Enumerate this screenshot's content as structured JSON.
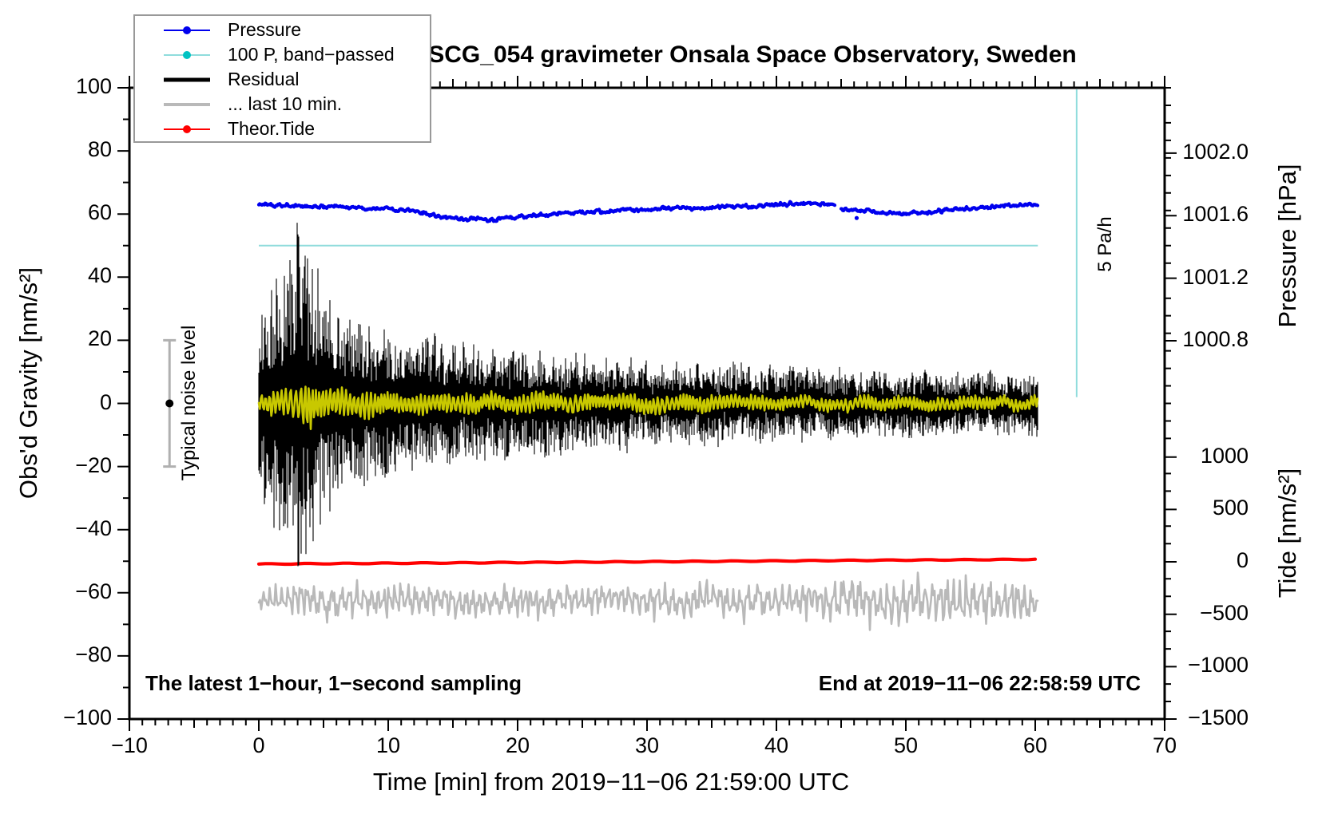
{
  "title": "SCG_054 gravimeter Onsala Space Observatory, Sweden",
  "legend": {
    "items": [
      {
        "label": "Pressure",
        "line_color": "#0000ee",
        "line_width": 2,
        "dot": true,
        "dot_color": "#0000ee"
      },
      {
        "label": "100 P, band−passed",
        "line_color": "#8fdcdc",
        "line_width": 2,
        "dot": true,
        "dot_color": "#00c3c3"
      },
      {
        "label": "Residual",
        "line_color": "#000000",
        "line_width": 5,
        "dot": false,
        "dot_color": "#000000"
      },
      {
        "label": "... last 10 min.",
        "line_color": "#b9b9b9",
        "line_width": 4,
        "dot": false,
        "dot_color": "#b9b9b9"
      },
      {
        "label": "Theor.Tide",
        "line_color": "#ff0000",
        "line_width": 2,
        "dot": true,
        "dot_color": "#ff0000"
      }
    ]
  },
  "annotations": {
    "noise_label": "Typical noise level",
    "rate_label": "5 Pa/h",
    "footer_left": "The latest 1−hour, 1−second sampling",
    "footer_right": "End at 2019−11−06 22:58:59 UTC"
  },
  "chart_data": {
    "type": "line",
    "grid": false,
    "x_axis": {
      "label": "Time [min] from 2019−11−06 21:59:00 UTC",
      "min": -10,
      "max": 70,
      "major_ticks": [
        -10,
        0,
        10,
        20,
        30,
        40,
        50,
        60,
        70
      ],
      "minor_step": 1,
      "medium_step": 5
    },
    "y_axis_left": {
      "label": "Obs'd Gravity [nm/s²]",
      "min": -100,
      "max": 100,
      "major_step": 20,
      "minor_step": 10,
      "major_ticks": [
        100,
        80,
        60,
        40,
        20,
        0,
        -20,
        -40,
        -60,
        -80,
        -100
      ]
    },
    "y_axis_pressure": {
      "label": "Pressure [hPa]",
      "tick_values": [
        1002.0,
        1001.6,
        1001.2,
        1000.8
      ],
      "tick_labels": [
        "1002.0",
        "1001.6",
        "1001.2",
        "1000.8"
      ]
    },
    "y_axis_tide": {
      "label": "Tide [nm/s²]",
      "tick_values": [
        1000,
        500,
        0,
        -500,
        -1000,
        -1500
      ]
    },
    "data_span_min": [
      0,
      60.2
    ],
    "series": [
      {
        "name": "Pressure",
        "axis": "pressure",
        "color": "#0000ee",
        "style": "beaded_line",
        "width": 4.2,
        "jitter_hpa": 0.014,
        "gap_min": [
          44.55,
          45.0
        ],
        "outlier": {
          "t_min": 46.2,
          "hpa": 1001.585
        },
        "anchors_min_hpa": [
          [
            0,
            1001.67
          ],
          [
            2,
            1001.665
          ],
          [
            4,
            1001.66
          ],
          [
            6,
            1001.66
          ],
          [
            8,
            1001.65
          ],
          [
            10,
            1001.645
          ],
          [
            11,
            1001.63
          ],
          [
            12,
            1001.635
          ],
          [
            13,
            1001.61
          ],
          [
            14,
            1001.595
          ],
          [
            15,
            1001.58
          ],
          [
            16,
            1001.575
          ],
          [
            17,
            1001.585
          ],
          [
            18,
            1001.57
          ],
          [
            19,
            1001.585
          ],
          [
            20,
            1001.59
          ],
          [
            21,
            1001.6
          ],
          [
            22,
            1001.605
          ],
          [
            23,
            1001.61
          ],
          [
            24,
            1001.62
          ],
          [
            25,
            1001.615
          ],
          [
            26,
            1001.625
          ],
          [
            27,
            1001.63
          ],
          [
            28,
            1001.635
          ],
          [
            29,
            1001.64
          ],
          [
            30,
            1001.64
          ],
          [
            31,
            1001.645
          ],
          [
            32,
            1001.65
          ],
          [
            33,
            1001.65
          ],
          [
            34,
            1001.645
          ],
          [
            35,
            1001.65
          ],
          [
            36,
            1001.655
          ],
          [
            37,
            1001.66
          ],
          [
            38,
            1001.66
          ],
          [
            39,
            1001.665
          ],
          [
            40,
            1001.67
          ],
          [
            41,
            1001.675
          ],
          [
            42,
            1001.68
          ],
          [
            43,
            1001.675
          ],
          [
            44,
            1001.67
          ],
          [
            44.55,
            1001.665
          ],
          [
            45,
            1001.64
          ],
          [
            46,
            1001.635
          ],
          [
            47,
            1001.63
          ],
          [
            48,
            1001.62
          ],
          [
            49,
            1001.615
          ],
          [
            50,
            1001.62
          ],
          [
            51,
            1001.62
          ],
          [
            52,
            1001.625
          ],
          [
            53,
            1001.63
          ],
          [
            54,
            1001.64
          ],
          [
            55,
            1001.645
          ],
          [
            56,
            1001.65
          ],
          [
            57,
            1001.66
          ],
          [
            58,
            1001.665
          ],
          [
            59,
            1001.67
          ],
          [
            60.2,
            1001.675
          ]
        ]
      },
      {
        "name": "100 P, band−passed",
        "axis": "gravity",
        "color": "#c8c800",
        "style": "oscillation",
        "width": 2.6,
        "center": 0,
        "period_min": 0.3,
        "amplitude_anchors": [
          [
            0,
            3
          ],
          [
            1,
            4
          ],
          [
            2,
            5
          ],
          [
            3,
            6.5
          ],
          [
            3.5,
            7.5
          ],
          [
            4,
            7
          ],
          [
            4.5,
            6.5
          ],
          [
            5,
            5.5
          ],
          [
            6,
            5
          ],
          [
            7,
            4.8
          ],
          [
            8,
            4.5
          ],
          [
            10,
            4
          ],
          [
            12,
            3.8
          ],
          [
            15,
            3.5
          ],
          [
            20,
            3.2
          ],
          [
            25,
            3
          ],
          [
            30,
            2.8
          ],
          [
            35,
            2.5
          ],
          [
            40,
            2.3
          ],
          [
            45,
            2.2
          ],
          [
            50,
            2.2
          ],
          [
            55,
            2.1
          ],
          [
            60.2,
            2.1
          ]
        ]
      },
      {
        "name": "Residual",
        "axis": "gravity",
        "color": "#000000",
        "style": "noise_columns",
        "width": 1.1,
        "center": 0,
        "envelope_anchors": [
          [
            0,
            28
          ],
          [
            0.5,
            34
          ],
          [
            1,
            36
          ],
          [
            1.5,
            38
          ],
          [
            2,
            42
          ],
          [
            2.5,
            39
          ],
          [
            3,
            52
          ],
          [
            3.3,
            48
          ],
          [
            3.6,
            45
          ],
          [
            4,
            44
          ],
          [
            4.5,
            39
          ],
          [
            5,
            34
          ],
          [
            5.5,
            32
          ],
          [
            6,
            30
          ],
          [
            7,
            27
          ],
          [
            8,
            25
          ],
          [
            9,
            23
          ],
          [
            10,
            22
          ],
          [
            11,
            21
          ],
          [
            12,
            20
          ],
          [
            13,
            19.5
          ],
          [
            14,
            19
          ],
          [
            15,
            18
          ],
          [
            16,
            17.5
          ],
          [
            17,
            17
          ],
          [
            18,
            16.5
          ],
          [
            19,
            16
          ],
          [
            20,
            15.5
          ],
          [
            21,
            16
          ],
          [
            22,
            17.5
          ],
          [
            23,
            15
          ],
          [
            24,
            14.5
          ],
          [
            25,
            14
          ],
          [
            26,
            14
          ],
          [
            27,
            13.5
          ],
          [
            28,
            13.5
          ],
          [
            29,
            13
          ],
          [
            30,
            13
          ],
          [
            32,
            12.5
          ],
          [
            34,
            12
          ],
          [
            36,
            11.5
          ],
          [
            38,
            11.5
          ],
          [
            40,
            11
          ],
          [
            42,
            10.5
          ],
          [
            44,
            10.5
          ],
          [
            46,
            10
          ],
          [
            48,
            10
          ],
          [
            50,
            9.5
          ],
          [
            52,
            9.5
          ],
          [
            54,
            9
          ],
          [
            56,
            9
          ],
          [
            58,
            9
          ],
          [
            60.2,
            9
          ]
        ]
      },
      {
        "name": "... last 10 min.",
        "axis": "gravity",
        "color": "#b9b9b9",
        "style": "wiggle",
        "width": 2.6,
        "center": -62.5,
        "period_min": 0.55,
        "amplitude_anchors": [
          [
            0,
            5
          ],
          [
            5,
            6
          ],
          [
            10,
            6
          ],
          [
            15,
            5.5
          ],
          [
            20,
            6
          ],
          [
            25,
            5.5
          ],
          [
            30,
            6
          ],
          [
            35,
            6
          ],
          [
            40,
            6.5
          ],
          [
            45,
            7
          ],
          [
            48,
            8
          ],
          [
            50,
            9
          ],
          [
            52,
            8
          ],
          [
            54,
            9
          ],
          [
            56,
            9
          ],
          [
            58,
            7
          ],
          [
            60.2,
            7
          ]
        ]
      },
      {
        "name": "Theor.Tide",
        "axis": "gravity",
        "color": "#ff0000",
        "style": "line",
        "width": 4.2,
        "anchors_min_gravity": [
          [
            0,
            -50.9
          ],
          [
            10,
            -50.65
          ],
          [
            20,
            -50.4
          ],
          [
            30,
            -50.15
          ],
          [
            40,
            -49.9
          ],
          [
            50,
            -49.65
          ],
          [
            60.2,
            -49.4
          ]
        ],
        "tide_axis_values_nms2": [
          [
            0,
            -22
          ],
          [
            60,
            28
          ]
        ]
      },
      {
        "name": "Typical noise level",
        "axis": "gravity",
        "style": "errorbar_marker",
        "t_min": -6.9,
        "center": 0,
        "half_range": 20,
        "bar_color": "#b0b0b0",
        "dot_color": "#000000"
      }
    ],
    "reference_lines": {
      "color": "#8fdcdc",
      "horizontal": {
        "gravity": 50,
        "t0": 0,
        "t1": 60.2
      },
      "vertical": {
        "t": 63.2,
        "gravity_top": 99.5,
        "gravity_bottom": 2.0
      }
    }
  }
}
